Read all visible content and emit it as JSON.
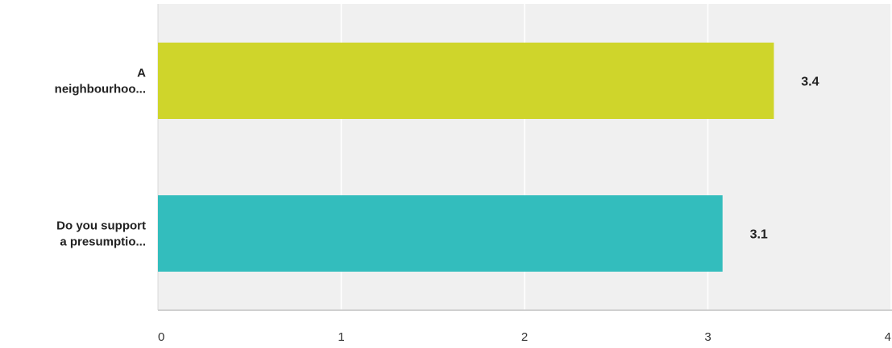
{
  "chart_data": {
    "type": "bar",
    "orientation": "horizontal",
    "categories": [
      "A neighbourhoo...",
      "Do you support a presumptio..."
    ],
    "category_lines": [
      [
        "A",
        "neighbourhoo..."
      ],
      [
        "Do you support",
        "a presumptio..."
      ]
    ],
    "values": [
      3.36,
      3.08
    ],
    "data_labels": [
      "3.4",
      "3.1"
    ],
    "colors": [
      "#cfd52b",
      "#33bdbd"
    ],
    "xlim": [
      0,
      4
    ],
    "xticks": [
      "0",
      "1",
      "2",
      "3",
      "4"
    ],
    "grid": true,
    "background": "#f0f0f0",
    "gridline_color": "#ffffff",
    "title": "",
    "xlabel": "",
    "ylabel": ""
  }
}
